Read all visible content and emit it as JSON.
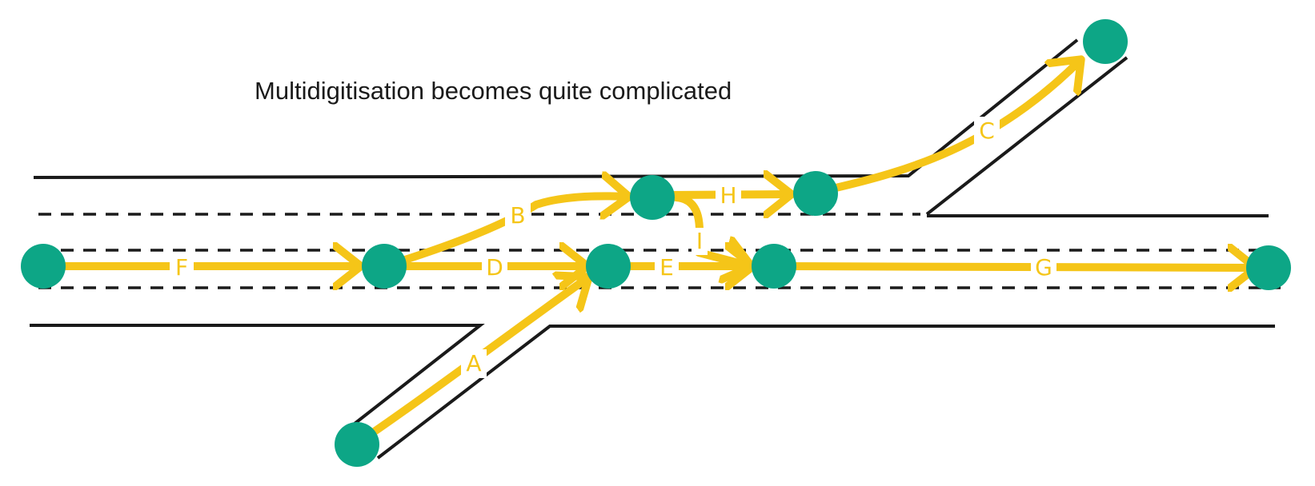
{
  "title": "Multidigitisation becomes quite complicated",
  "colors": {
    "node": "#0da686",
    "edge": "#f5c518",
    "road": "#1a1a1a",
    "background": "#ffffff"
  },
  "edges": [
    {
      "id": "F",
      "label": "F"
    },
    {
      "id": "D",
      "label": "D"
    },
    {
      "id": "E",
      "label": "E"
    },
    {
      "id": "G",
      "label": "G"
    },
    {
      "id": "A",
      "label": "A"
    },
    {
      "id": "B",
      "label": "B"
    },
    {
      "id": "H",
      "label": "H"
    },
    {
      "id": "C",
      "label": "C"
    },
    {
      "id": "I",
      "label": "I"
    }
  ]
}
